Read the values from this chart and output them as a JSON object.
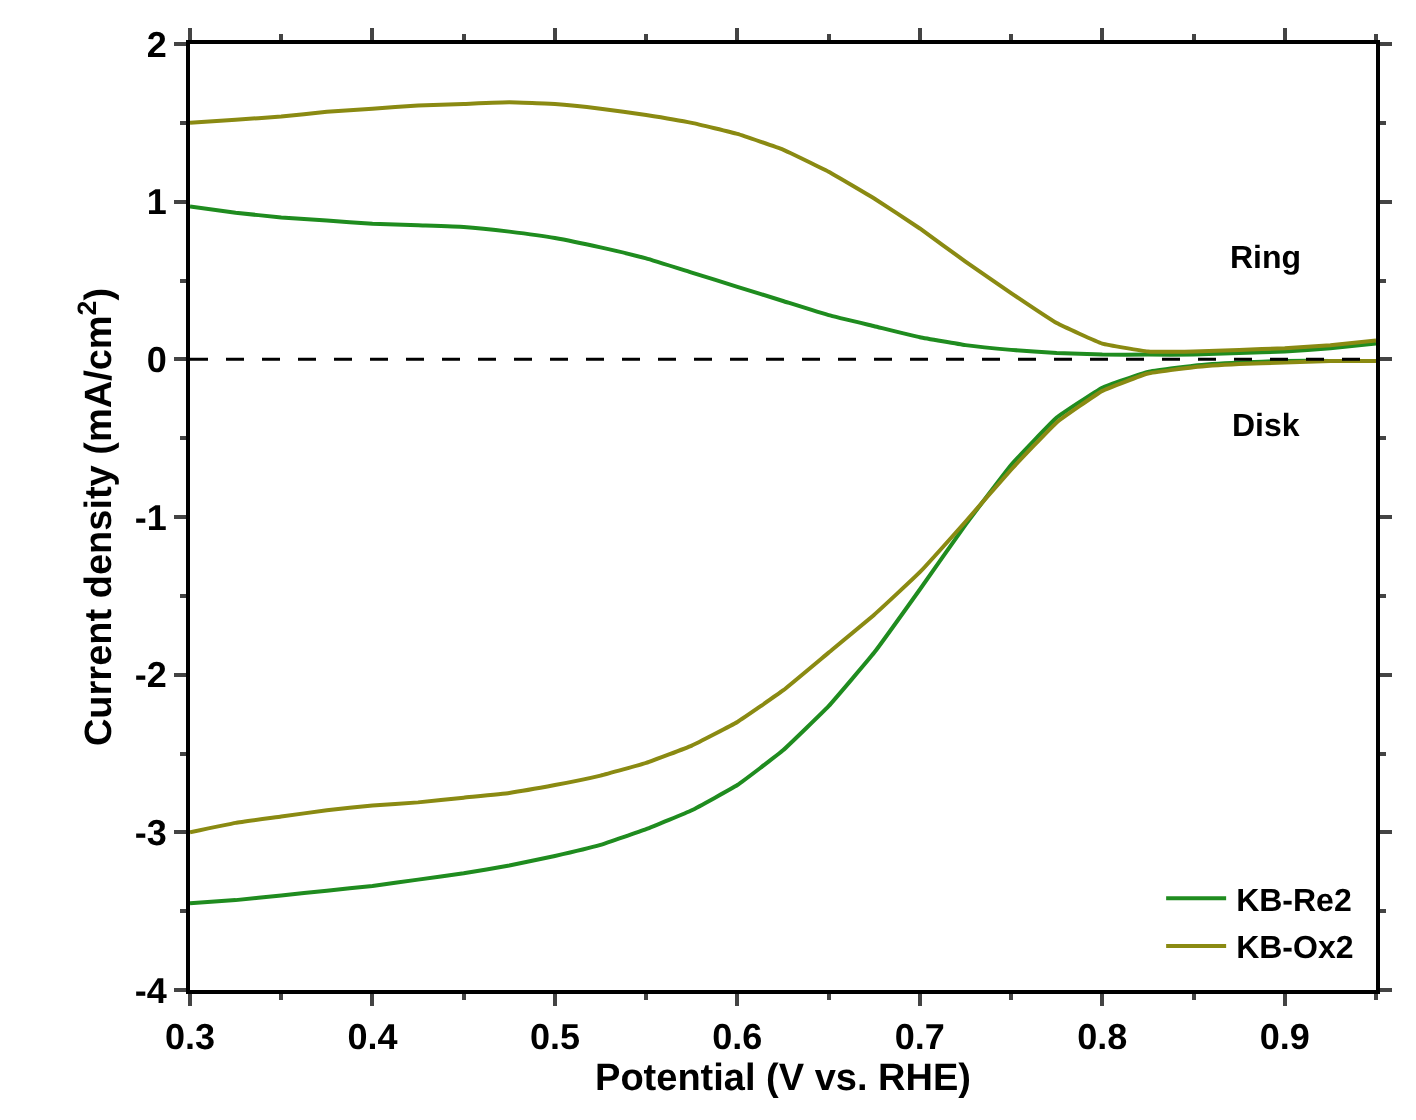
{
  "chart_data": {
    "type": "line",
    "xlabel": "Potential (V vs. RHE)",
    "ylabel": "Current density (mA/cm$^{2}$)",
    "x": [
      0.3,
      0.325,
      0.35,
      0.375,
      0.4,
      0.425,
      0.45,
      0.475,
      0.5,
      0.525,
      0.55,
      0.575,
      0.6,
      0.625,
      0.65,
      0.675,
      0.7,
      0.725,
      0.75,
      0.775,
      0.8,
      0.825,
      0.85,
      0.875,
      0.9,
      0.925,
      0.95
    ],
    "series": [
      {
        "name": "KB-Re2",
        "color": "#1f8c1f",
        "values": [
          -3.45,
          -3.43,
          -3.4,
          -3.37,
          -3.34,
          -3.3,
          -3.26,
          -3.21,
          -3.15,
          -3.08,
          -2.98,
          -2.86,
          -2.7,
          -2.48,
          -2.2,
          -1.86,
          -1.46,
          -1.05,
          -0.67,
          -0.37,
          -0.18,
          -0.08,
          -0.04,
          -0.02,
          -0.01,
          -0.01,
          -0.01
        ]
      },
      {
        "name": "KB-Ox2",
        "color": "#8a8a12",
        "values": [
          -3.0,
          -2.94,
          -2.9,
          -2.86,
          -2.83,
          -2.81,
          -2.78,
          -2.75,
          -2.7,
          -2.64,
          -2.56,
          -2.45,
          -2.3,
          -2.1,
          -1.86,
          -1.62,
          -1.35,
          -1.03,
          -0.7,
          -0.4,
          -0.2,
          -0.09,
          -0.05,
          -0.03,
          -0.02,
          -0.01,
          -0.01
        ]
      },
      {
        "color": "#1f8c1f",
        "values": [
          0.97,
          0.93,
          0.9,
          0.88,
          0.86,
          0.85,
          0.84,
          0.81,
          0.77,
          0.71,
          0.64,
          0.55,
          0.46,
          0.37,
          0.28,
          0.21,
          0.14,
          0.09,
          0.06,
          0.04,
          0.03,
          0.03,
          0.03,
          0.04,
          0.05,
          0.07,
          0.1
        ]
      },
      {
        "color": "#8a8a12",
        "values": [
          1.5,
          1.52,
          1.54,
          1.57,
          1.59,
          1.61,
          1.62,
          1.63,
          1.62,
          1.59,
          1.55,
          1.5,
          1.43,
          1.33,
          1.19,
          1.02,
          0.83,
          0.62,
          0.42,
          0.23,
          0.1,
          0.05,
          0.05,
          0.06,
          0.07,
          0.09,
          0.12
        ]
      }
    ],
    "annotations": [
      "Ring",
      "Disk"
    ],
    "ref_lines": [
      {
        "axis": "y",
        "value": 0,
        "color": "#000000",
        "line_style": "dashed"
      }
    ],
    "xlim": [
      0.3,
      0.95
    ],
    "xticks": [
      0.3,
      0.4,
      0.5,
      0.6,
      0.7,
      0.8,
      0.9
    ],
    "ylim": [
      -4,
      2
    ],
    "yticks": [
      -4,
      -3,
      -2,
      -1,
      0,
      1,
      2
    ],
    "legend": "bottom right",
    "marker": "none",
    "line_style": "solid"
  }
}
